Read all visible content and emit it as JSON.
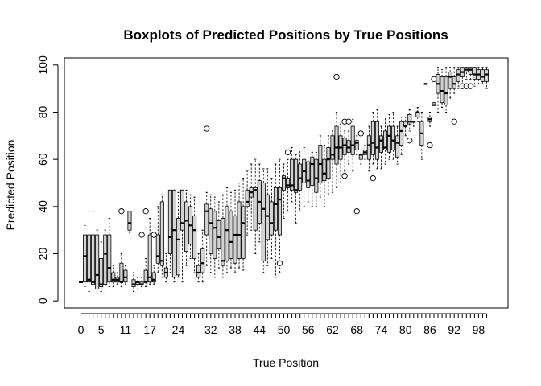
{
  "chart_data": {
    "type": "boxplot",
    "title": "Boxplots of Predicted Positions by True Positions",
    "xlabel": "True Position",
    "ylabel": "Predicted Position",
    "ylim": [
      -3,
      103
    ],
    "yticks": [
      0,
      20,
      40,
      60,
      80,
      100
    ],
    "xtick_labels": [
      0,
      5,
      11,
      17,
      24,
      32,
      38,
      44,
      50,
      56,
      62,
      68,
      74,
      80,
      86,
      92,
      98
    ],
    "grid": false,
    "box_fill": "#d3d3d3",
    "line_color": "#000000",
    "boxes": [
      {
        "x": 0,
        "min": 8,
        "q1": 8,
        "median": 8,
        "q3": 8,
        "max": 8
      },
      {
        "x": 1,
        "min": 6,
        "q1": 8,
        "median": 19,
        "q3": 28,
        "max": 32
      },
      {
        "x": 2,
        "min": 4,
        "q1": 8,
        "median": 9,
        "q3": 28,
        "max": 38
      },
      {
        "x": 3,
        "min": 3,
        "q1": 7,
        "median": 8,
        "q3": 28,
        "max": 38
      },
      {
        "x": 4,
        "min": 3,
        "q1": 5,
        "median": 11,
        "q3": 28,
        "max": 30
      },
      {
        "x": 5,
        "min": 4,
        "q1": 6,
        "median": 7,
        "q3": 18,
        "max": 25
      },
      {
        "x": 6,
        "min": 5,
        "q1": 7,
        "median": 20,
        "q3": 28,
        "max": 30
      },
      {
        "x": 7,
        "min": 6,
        "q1": 8,
        "median": 14,
        "q3": 28,
        "max": 35
      },
      {
        "x": 8,
        "min": 6,
        "q1": 8,
        "median": 9,
        "q3": 12,
        "max": 15
      },
      {
        "x": 9,
        "min": 7,
        "q1": 8,
        "median": 9,
        "q3": 10,
        "max": 12
      },
      {
        "x": 10,
        "min": 6,
        "q1": 8,
        "median": 8,
        "q3": 16,
        "max": 20,
        "outliers": [
          38
        ]
      },
      {
        "x": 11,
        "min": 7,
        "q1": 8,
        "median": 10,
        "q3": 13,
        "max": 15
      },
      {
        "x": 12,
        "min": 29,
        "q1": 30,
        "median": 33,
        "q3": 38,
        "max": 38
      },
      {
        "x": 13,
        "min": 4,
        "q1": 6,
        "median": 7,
        "q3": 9,
        "max": 12
      },
      {
        "x": 14,
        "min": 5,
        "q1": 7,
        "median": 8,
        "q3": 8,
        "max": 10
      },
      {
        "x": 15,
        "min": 6,
        "q1": 7,
        "median": 7,
        "q3": 8,
        "max": 10,
        "outliers": [
          28
        ]
      },
      {
        "x": 16,
        "min": 6,
        "q1": 8,
        "median": 8,
        "q3": 13,
        "max": 18,
        "outliers": [
          38
        ]
      },
      {
        "x": 17,
        "min": 7,
        "q1": 8,
        "median": 10,
        "q3": 28,
        "max": 35
      },
      {
        "x": 18,
        "min": 7,
        "q1": 8,
        "median": 9,
        "q3": 12,
        "max": 15,
        "outliers": [
          28
        ]
      },
      {
        "x": 19,
        "min": 12,
        "q1": 16,
        "median": 19,
        "q3": 28,
        "max": 40
      },
      {
        "x": 20,
        "min": 10,
        "q1": 15,
        "median": 17,
        "q3": 42,
        "max": 45
      },
      {
        "x": 21,
        "min": 8,
        "q1": 10,
        "median": 12,
        "q3": 14,
        "max": 20
      },
      {
        "x": 22,
        "min": 12,
        "q1": 20,
        "median": 27,
        "q3": 47,
        "max": 47
      },
      {
        "x": 23,
        "min": 8,
        "q1": 10,
        "median": 30,
        "q3": 47,
        "max": 47
      },
      {
        "x": 24,
        "min": 10,
        "q1": 11,
        "median": 26,
        "q3": 35,
        "max": 46
      },
      {
        "x": 25,
        "min": 8,
        "q1": 30,
        "median": 33,
        "q3": 47,
        "max": 47
      },
      {
        "x": 26,
        "min": 15,
        "q1": 21,
        "median": 34,
        "q3": 42,
        "max": 47
      },
      {
        "x": 27,
        "min": 18,
        "q1": 24,
        "median": 32,
        "q3": 40,
        "max": 45
      },
      {
        "x": 28,
        "min": 12,
        "q1": 18,
        "median": 30,
        "q3": 36,
        "max": 44
      },
      {
        "x": 29,
        "min": 8,
        "q1": 10,
        "median": 12,
        "q3": 15,
        "max": 20
      },
      {
        "x": 30,
        "min": 8,
        "q1": 12,
        "median": 16,
        "q3": 22,
        "max": 30
      },
      {
        "x": 31,
        "min": 15,
        "q1": 28,
        "median": 38,
        "q3": 41,
        "max": 46,
        "outliers": [
          73
        ]
      },
      {
        "x": 32,
        "min": 12,
        "q1": 20,
        "median": 33,
        "q3": 39,
        "max": 45
      },
      {
        "x": 33,
        "min": 10,
        "q1": 18,
        "median": 31,
        "q3": 38,
        "max": 44
      },
      {
        "x": 34,
        "min": 14,
        "q1": 22,
        "median": 27,
        "q3": 34,
        "max": 42
      },
      {
        "x": 35,
        "min": 10,
        "q1": 15,
        "median": 17,
        "q3": 35,
        "max": 45
      },
      {
        "x": 36,
        "min": 12,
        "q1": 17,
        "median": 30,
        "q3": 40,
        "max": 48
      },
      {
        "x": 37,
        "min": 14,
        "q1": 18,
        "median": 25,
        "q3": 38,
        "max": 46
      },
      {
        "x": 38,
        "min": 12,
        "q1": 16,
        "median": 28,
        "q3": 36,
        "max": 47
      },
      {
        "x": 39,
        "min": 14,
        "q1": 18,
        "median": 28,
        "q3": 42,
        "max": 50
      },
      {
        "x": 40,
        "min": 13,
        "q1": 18,
        "median": 33,
        "q3": 40,
        "max": 52
      },
      {
        "x": 41,
        "min": 28,
        "q1": 40,
        "median": 42,
        "q3": 47,
        "max": 55
      },
      {
        "x": 42,
        "min": 30,
        "q1": 44,
        "median": 46,
        "q3": 48,
        "max": 58
      },
      {
        "x": 43,
        "min": 20,
        "q1": 30,
        "median": 47,
        "q3": 48,
        "max": 60
      },
      {
        "x": 44,
        "min": 25,
        "q1": 33,
        "median": 42,
        "q3": 51,
        "max": 58
      },
      {
        "x": 45,
        "min": 12,
        "q1": 17,
        "median": 39,
        "q3": 50,
        "max": 56
      },
      {
        "x": 46,
        "min": 15,
        "q1": 26,
        "median": 36,
        "q3": 45,
        "max": 56
      },
      {
        "x": 47,
        "min": 18,
        "q1": 28,
        "median": 33,
        "q3": 42,
        "max": 52
      },
      {
        "x": 48,
        "min": 10,
        "q1": 30,
        "median": 41,
        "q3": 48,
        "max": 58
      },
      {
        "x": 49,
        "min": 12,
        "q1": 28,
        "median": 43,
        "q3": 48,
        "max": 60,
        "outliers": [
          16
        ]
      },
      {
        "x": 50,
        "min": 35,
        "q1": 47,
        "median": 52,
        "q3": 53,
        "max": 58
      },
      {
        "x": 51,
        "min": 38,
        "q1": 48,
        "median": 49,
        "q3": 52,
        "max": 60,
        "outliers": [
          63
        ]
      },
      {
        "x": 52,
        "min": 42,
        "q1": 47,
        "median": 49,
        "q3": 60,
        "max": 65
      },
      {
        "x": 53,
        "min": 33,
        "q1": 46,
        "median": 47,
        "q3": 60,
        "max": 62
      },
      {
        "x": 54,
        "min": 38,
        "q1": 47,
        "median": 52,
        "q3": 58,
        "max": 64
      },
      {
        "x": 55,
        "min": 40,
        "q1": 50,
        "median": 55,
        "q3": 60,
        "max": 65
      },
      {
        "x": 56,
        "min": 42,
        "q1": 48,
        "median": 51,
        "q3": 59,
        "max": 64
      },
      {
        "x": 57,
        "min": 40,
        "q1": 49,
        "median": 58,
        "q3": 61,
        "max": 63
      },
      {
        "x": 58,
        "min": 40,
        "q1": 46,
        "median": 52,
        "q3": 60,
        "max": 63
      },
      {
        "x": 59,
        "min": 44,
        "q1": 50,
        "median": 58,
        "q3": 66,
        "max": 70
      },
      {
        "x": 60,
        "min": 40,
        "q1": 51,
        "median": 54,
        "q3": 60,
        "max": 66
      },
      {
        "x": 61,
        "min": 45,
        "q1": 52,
        "median": 60,
        "q3": 65,
        "max": 70
      },
      {
        "x": 62,
        "min": 46,
        "q1": 60,
        "median": 62,
        "q3": 70,
        "max": 72
      },
      {
        "x": 63,
        "min": 48,
        "q1": 58,
        "median": 65,
        "q3": 74,
        "max": 80,
        "outliers": [
          95
        ]
      },
      {
        "x": 64,
        "min": 50,
        "q1": 60,
        "median": 65,
        "q3": 70,
        "max": 75
      },
      {
        "x": 65,
        "min": 55,
        "q1": 62,
        "median": 66,
        "q3": 69,
        "max": 72,
        "outliers": [
          53,
          76
        ]
      },
      {
        "x": 66,
        "min": 58,
        "q1": 63,
        "median": 65,
        "q3": 68,
        "max": 72,
        "outliers": [
          76
        ]
      },
      {
        "x": 67,
        "min": 55,
        "q1": 62,
        "median": 66,
        "q3": 74,
        "max": 77
      },
      {
        "x": 68,
        "min": 62,
        "q1": 64,
        "median": 67,
        "q3": 68,
        "max": 70,
        "outliers": [
          38
        ]
      },
      {
        "x": 69,
        "min": 58,
        "q1": 60,
        "median": 62,
        "q3": 62,
        "max": 64,
        "outliers": [
          71
        ]
      },
      {
        "x": 70,
        "min": 60,
        "q1": 62,
        "median": 63,
        "q3": 64,
        "max": 66
      },
      {
        "x": 71,
        "min": 55,
        "q1": 60,
        "median": 66,
        "q3": 70,
        "max": 74
      },
      {
        "x": 72,
        "min": 58,
        "q1": 62,
        "median": 67,
        "q3": 76,
        "max": 80,
        "outliers": [
          52
        ]
      },
      {
        "x": 73,
        "min": 56,
        "q1": 60,
        "median": 65,
        "q3": 76,
        "max": 81
      },
      {
        "x": 74,
        "min": 56,
        "q1": 63,
        "median": 68,
        "q3": 70,
        "max": 74
      },
      {
        "x": 75,
        "min": 58,
        "q1": 64,
        "median": 65,
        "q3": 72,
        "max": 78
      },
      {
        "x": 76,
        "min": 60,
        "q1": 63,
        "median": 70,
        "q3": 74,
        "max": 79
      },
      {
        "x": 77,
        "min": 60,
        "q1": 64,
        "median": 68,
        "q3": 74,
        "max": 80
      },
      {
        "x": 78,
        "min": 58,
        "q1": 61,
        "median": 67,
        "q3": 70,
        "max": 74
      },
      {
        "x": 79,
        "min": 62,
        "q1": 66,
        "median": 72,
        "q3": 76,
        "max": 78
      },
      {
        "x": 80,
        "min": 70,
        "q1": 74,
        "median": 74,
        "q3": 76,
        "max": 78
      },
      {
        "x": 81,
        "min": 72,
        "q1": 75,
        "median": 76,
        "q3": 79,
        "max": 81,
        "outliers": [
          68
        ]
      },
      {
        "x": 82,
        "min": 74,
        "q1": 76,
        "median": 76,
        "q3": 76,
        "max": 76
      },
      {
        "x": 83,
        "min": 76,
        "q1": 78,
        "median": 80,
        "q3": 80,
        "max": 82
      },
      {
        "x": 84,
        "min": 60,
        "q1": 66,
        "median": 71,
        "q3": 76,
        "max": 80
      },
      {
        "x": 85,
        "min": 92,
        "q1": 92,
        "median": 92,
        "q3": 92,
        "max": 92
      },
      {
        "x": 86,
        "min": 74,
        "q1": 76,
        "median": 77,
        "q3": 78,
        "max": 80,
        "outliers": [
          66
        ]
      },
      {
        "x": 87,
        "min": 83,
        "q1": 83,
        "median": 83,
        "q3": 84,
        "max": 84,
        "outliers": [
          94
        ]
      },
      {
        "x": 88,
        "min": 80,
        "q1": 88,
        "median": 92,
        "q3": 96,
        "max": 99
      },
      {
        "x": 89,
        "min": 82,
        "q1": 84,
        "median": 89,
        "q3": 95,
        "max": 98
      },
      {
        "x": 90,
        "min": 80,
        "q1": 83,
        "median": 88,
        "q3": 95,
        "max": 99
      },
      {
        "x": 91,
        "min": 86,
        "q1": 90,
        "median": 95,
        "q3": 97,
        "max": 99
      },
      {
        "x": 92,
        "min": 88,
        "q1": 90,
        "median": 92,
        "q3": 95,
        "max": 99,
        "outliers": [
          76
        ]
      },
      {
        "x": 93,
        "min": 90,
        "q1": 93,
        "median": 96,
        "q3": 98,
        "max": 99
      },
      {
        "x": 94,
        "min": 92,
        "q1": 95,
        "median": 97,
        "q3": 99,
        "max": 99,
        "outliers": [
          91
        ]
      },
      {
        "x": 95,
        "min": 94,
        "q1": 97,
        "median": 98,
        "q3": 99,
        "max": 99,
        "outliers": [
          91
        ]
      },
      {
        "x": 96,
        "min": 94,
        "q1": 96,
        "median": 98,
        "q3": 99,
        "max": 99,
        "outliers": [
          91
        ]
      },
      {
        "x": 97,
        "min": 91,
        "q1": 94,
        "median": 96,
        "q3": 99,
        "max": 99
      },
      {
        "x": 98,
        "min": 92,
        "q1": 94,
        "median": 96,
        "q3": 98,
        "max": 99
      },
      {
        "x": 99,
        "min": 92,
        "q1": 93,
        "median": 95,
        "q3": 98,
        "max": 99
      },
      {
        "x": 100,
        "min": 90,
        "q1": 93,
        "median": 96,
        "q3": 98,
        "max": 99
      }
    ]
  }
}
